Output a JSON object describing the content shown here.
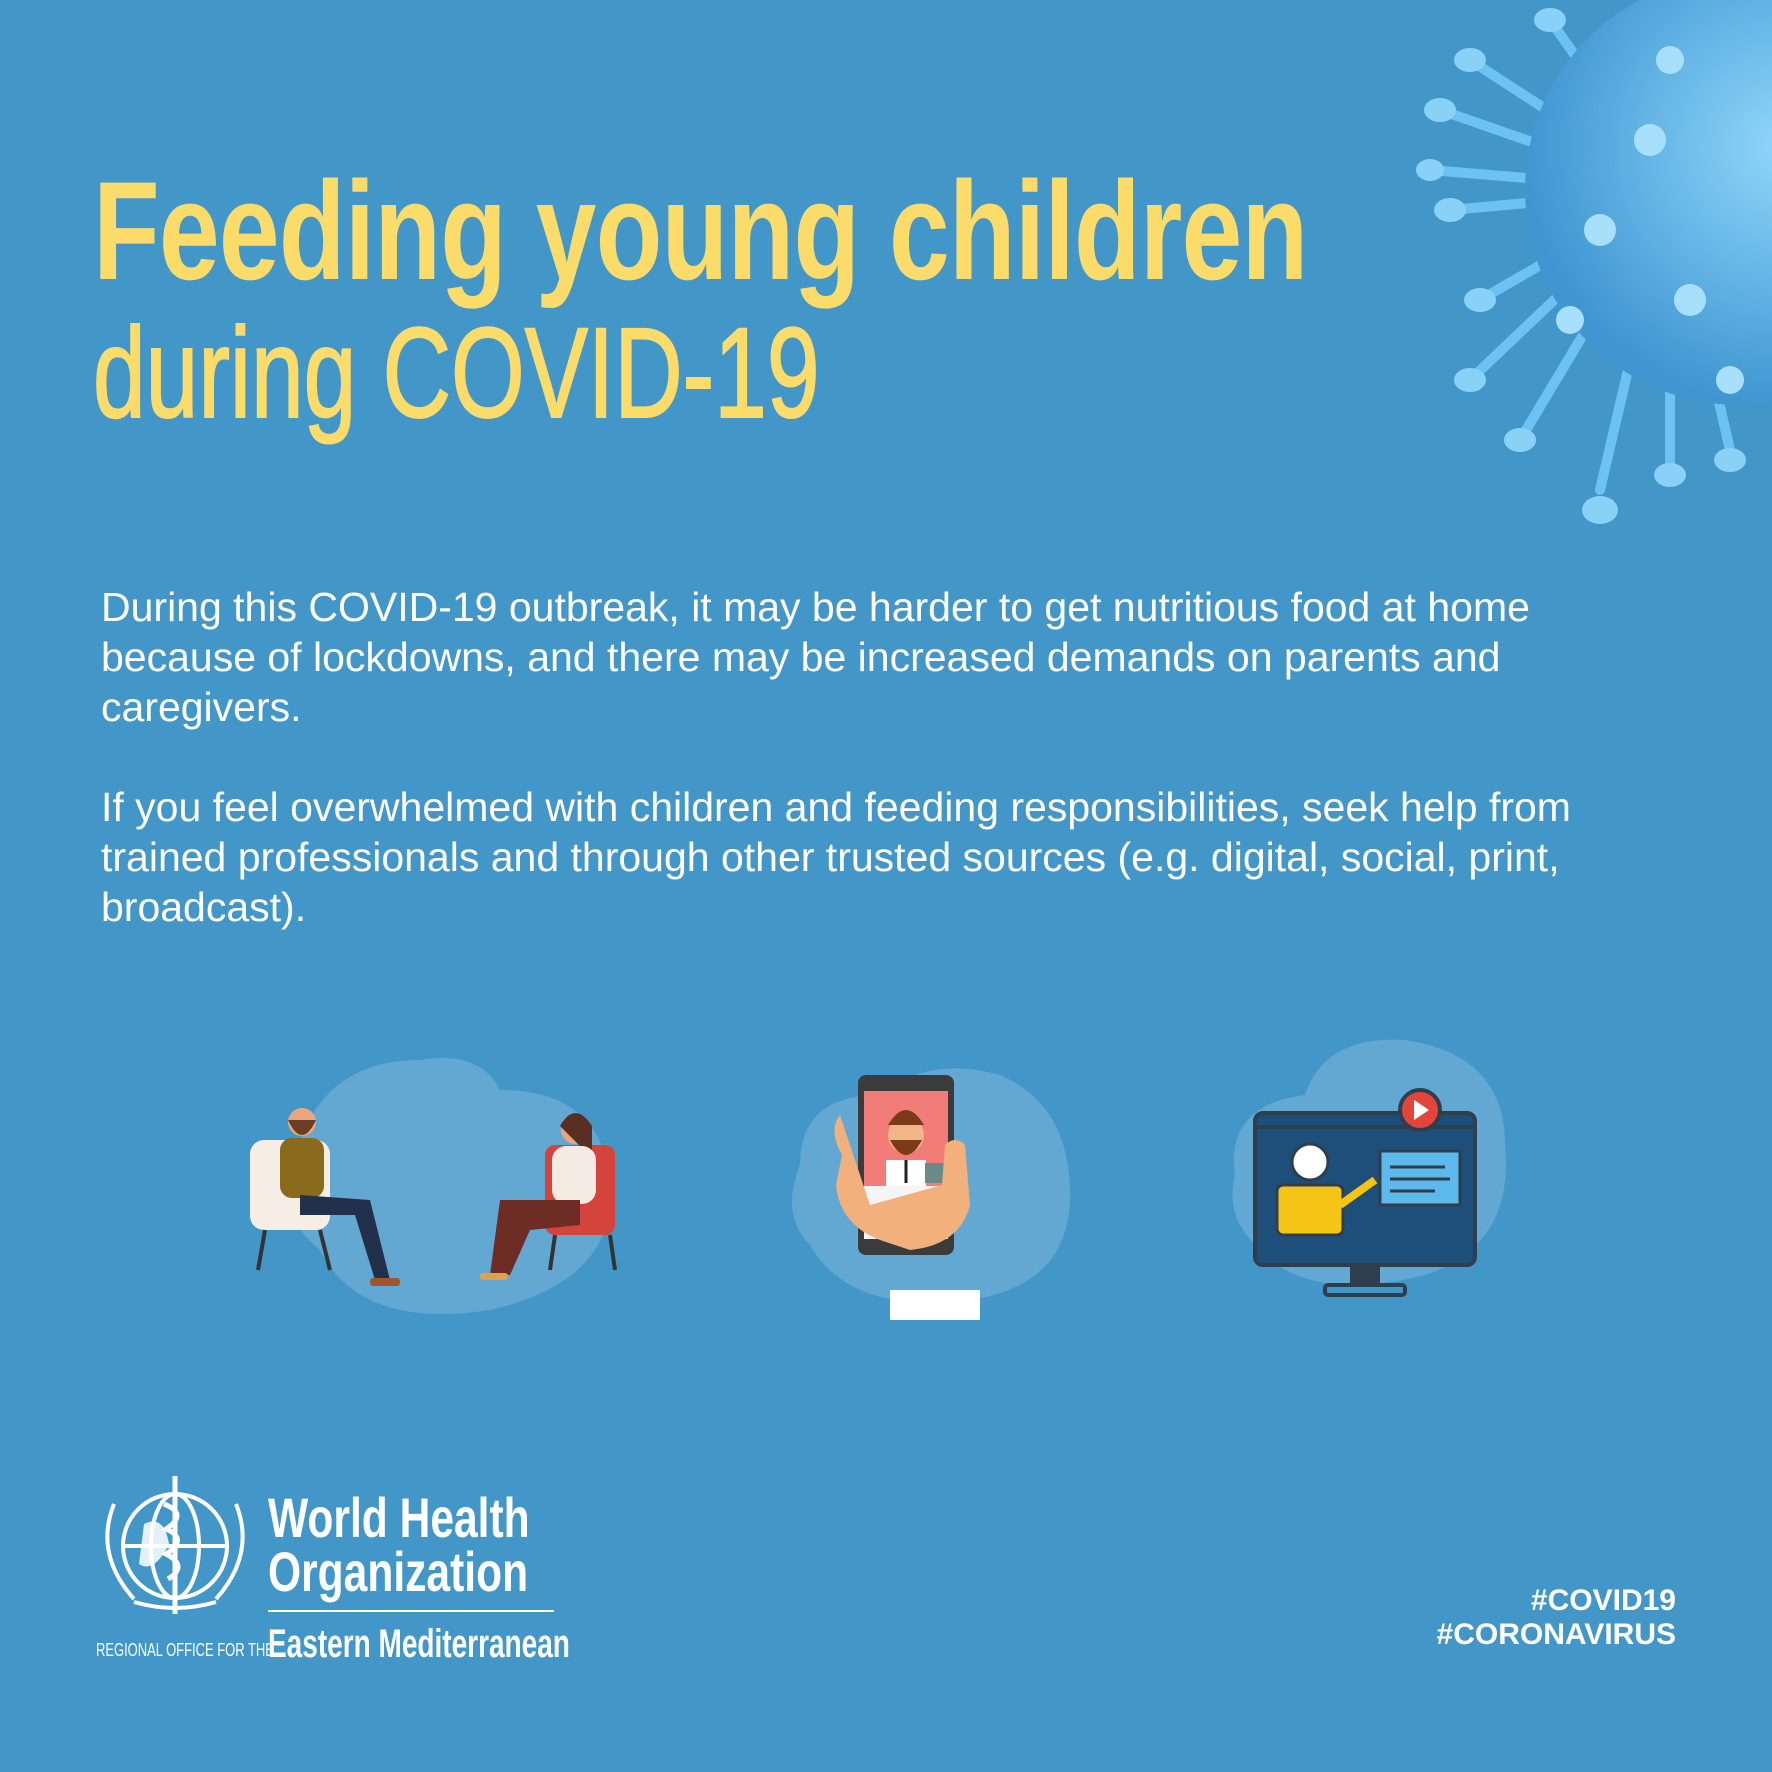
{
  "title": {
    "line1": "Feeding young children",
    "line2": "during COVID-19"
  },
  "body": {
    "paragraph1": "During this COVID-19 outbreak, it may be harder to get nutritious food at home because of lockdowns, and there may be increased demands on parents and caregivers.",
    "paragraph2": "If you feel overwhelmed with children and feeding responsibilities, seek help from trained professionals and through other trusted sources (e.g. digital, social, print, broadcast)."
  },
  "illustrations": [
    "counselling-session-illustration",
    "video-call-phone-illustration",
    "online-training-monitor-illustration"
  ],
  "logo": {
    "line1": "World Health",
    "line2": "Organization",
    "regional_prefix": "REGIONAL OFFICE FOR THE",
    "region": "Eastern Mediterranean"
  },
  "hashtags": [
    "#COVID19",
    "#CORONAVIRUS"
  ],
  "colors": {
    "background": "#4397c8",
    "title": "#fbdc6a",
    "text": "#ffffff",
    "virus": "#6cc3f2"
  }
}
